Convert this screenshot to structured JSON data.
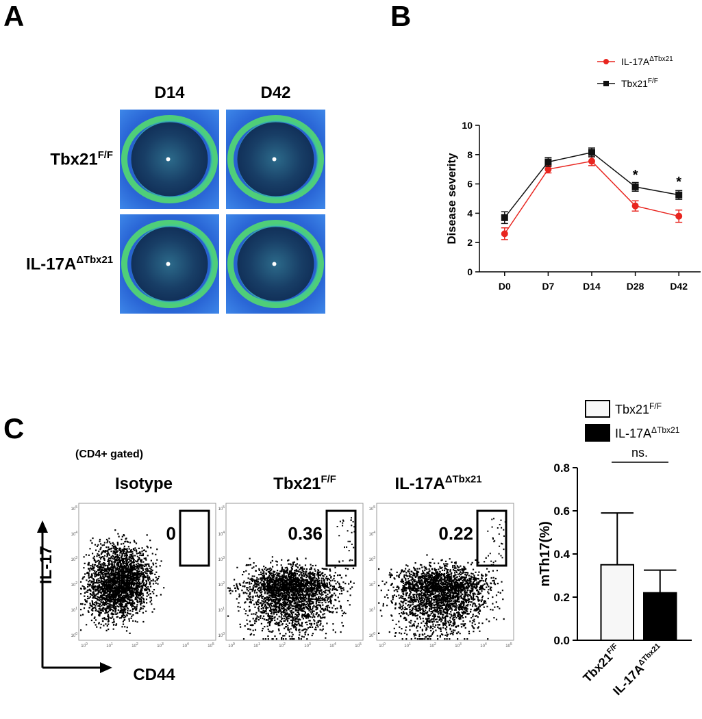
{
  "panel_labels": [
    "A",
    "B",
    "C"
  ],
  "panel_a": {
    "columns": [
      "D14",
      "D42"
    ],
    "rows": [
      {
        "base": "Tbx21",
        "sup": "F/F"
      },
      {
        "base": "IL-17A",
        "sup": "ΔTbx21"
      }
    ]
  },
  "panel_c_flow": {
    "gating_note": "(CD4+ gated)",
    "headers": [
      {
        "base": "Isotype"
      },
      {
        "base": "Tbx21",
        "sup": "F/F"
      },
      {
        "base": "IL-17A",
        "sup": "ΔTbx21"
      }
    ],
    "gate_values": [
      0,
      0.36,
      0.22
    ],
    "y_label": "IL-17",
    "x_label": "CD44",
    "tick_base": "10",
    "tick_exponents": [
      0,
      1,
      2,
      3,
      4,
      5
    ]
  },
  "chart_data": [
    {
      "type": "line",
      "y_label": "Disease severity",
      "categories": [
        "D0",
        "D7",
        "D14",
        "D28",
        "D42"
      ],
      "series": [
        {
          "name": "IL-17A",
          "name_sup": "ΔTbx21",
          "color": "#e8251f",
          "marker": "circle",
          "values": [
            2.6,
            7.0,
            7.55,
            4.5,
            3.8
          ],
          "errors": [
            0.4,
            0.25,
            0.3,
            0.35,
            0.42
          ]
        },
        {
          "name": "Tbx21",
          "name_sup": "F/F",
          "color": "#111111",
          "marker": "square",
          "values": [
            3.7,
            7.5,
            8.15,
            5.8,
            5.25
          ],
          "errors": [
            0.4,
            0.3,
            0.3,
            0.3,
            0.3
          ]
        }
      ],
      "annotations": [
        "*",
        "*"
      ],
      "ylim": [
        0,
        10
      ],
      "yticks": [
        0,
        2,
        4,
        6,
        8,
        10
      ]
    },
    {
      "type": "bar",
      "y_label": "mTh17(%)",
      "categories": [
        "Tbx21",
        "IL-17A"
      ],
      "category_sups": [
        "F/F",
        "ΔTbx21"
      ],
      "values": [
        0.35,
        0.22
      ],
      "errors": [
        0.24,
        0.105
      ],
      "colors": [
        "#f7f7f7",
        "#000000"
      ],
      "annotation": "ns.",
      "ylim": [
        0,
        0.8
      ],
      "yticks": [
        {
          "value": 0,
          "label": "0.0"
        },
        0.2,
        0.4,
        0.6,
        0.8
      ]
    }
  ]
}
